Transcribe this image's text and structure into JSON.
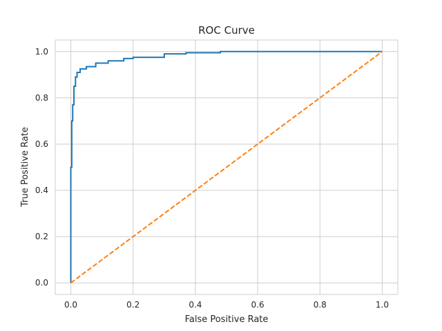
{
  "chart_data": {
    "type": "line",
    "title": "ROC Curve",
    "xlabel": "False Positive Rate",
    "ylabel": "True Positive Rate",
    "xlim": [
      -0.05,
      1.05
    ],
    "ylim": [
      -0.05,
      1.05
    ],
    "grid": true,
    "x_ticks": [
      0.0,
      0.2,
      0.4,
      0.6,
      0.8,
      1.0
    ],
    "y_ticks": [
      0.0,
      0.2,
      0.4,
      0.6,
      0.8,
      1.0
    ],
    "x_tick_labels": [
      "0.0",
      "0.2",
      "0.4",
      "0.6",
      "0.8",
      "1.0"
    ],
    "y_tick_labels": [
      "0.0",
      "0.2",
      "0.4",
      "0.6",
      "0.8",
      "1.0"
    ],
    "series": [
      {
        "color": "#1f77b4",
        "style": "solid",
        "step": true,
        "x": [
          0.0,
          0.0,
          0.003,
          0.003,
          0.006,
          0.006,
          0.01,
          0.01,
          0.015,
          0.015,
          0.02,
          0.02,
          0.03,
          0.03,
          0.05,
          0.05,
          0.08,
          0.08,
          0.12,
          0.12,
          0.17,
          0.17,
          0.2,
          0.2,
          0.3,
          0.3,
          0.37,
          0.37,
          0.48,
          0.48,
          1.0
        ],
        "y": [
          0.0,
          0.5,
          0.5,
          0.7,
          0.7,
          0.77,
          0.77,
          0.85,
          0.85,
          0.89,
          0.89,
          0.91,
          0.91,
          0.925,
          0.925,
          0.935,
          0.935,
          0.95,
          0.95,
          0.96,
          0.96,
          0.97,
          0.97,
          0.975,
          0.975,
          0.99,
          0.99,
          0.995,
          0.995,
          1.0,
          1.0
        ]
      },
      {
        "color": "#ff7f0e",
        "style": "dashed",
        "step": false,
        "x": [
          0.0,
          1.0
        ],
        "y": [
          0.0,
          1.0
        ]
      }
    ]
  }
}
